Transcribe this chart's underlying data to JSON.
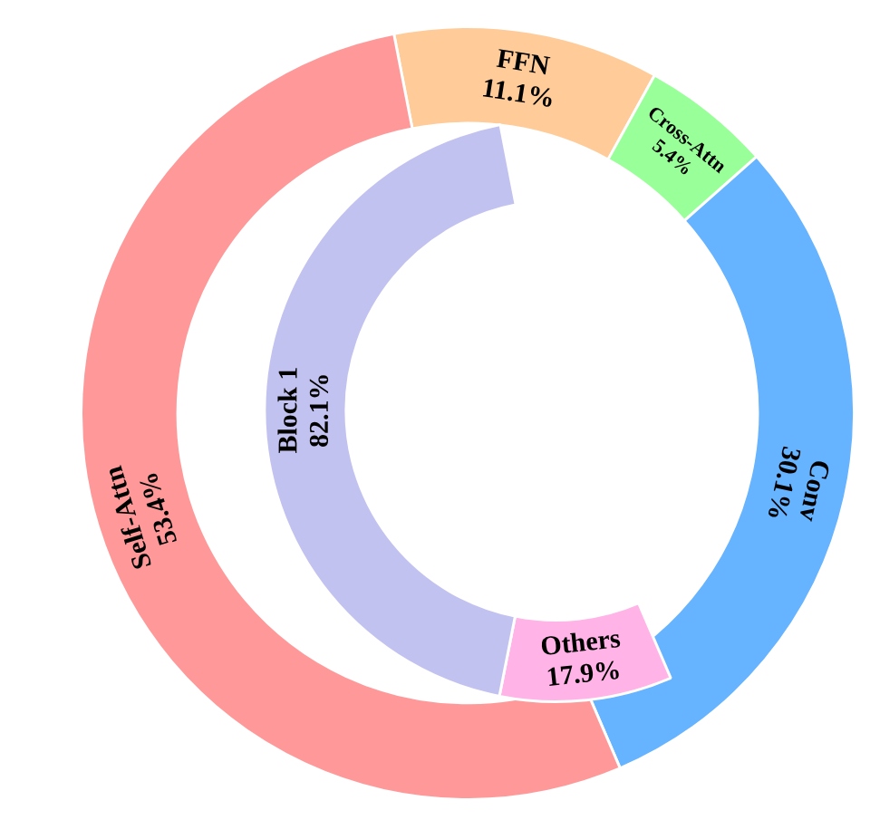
{
  "chart_data": [
    {
      "type": "donut",
      "categories": [
        "FFN",
        "Cross-Attn",
        "Conv",
        "Self-Attn"
      ],
      "values": [
        11.1,
        5.4,
        30.1,
        53.4
      ],
      "colors": [
        "#ffcc99",
        "#99ff99",
        "#66b3ff",
        "#ff9999"
      ],
      "value_labels": [
        "11.1%",
        "5.4%",
        "30.1%",
        "53.4%"
      ]
    },
    {
      "type": "donut",
      "categories": [
        "Others",
        "Block 1"
      ],
      "values": [
        17.9,
        82.1
      ],
      "colors": [
        "#ffb3e6",
        "#c2c2f0"
      ],
      "value_labels": [
        "17.9%",
        "82.1%"
      ]
    }
  ]
}
